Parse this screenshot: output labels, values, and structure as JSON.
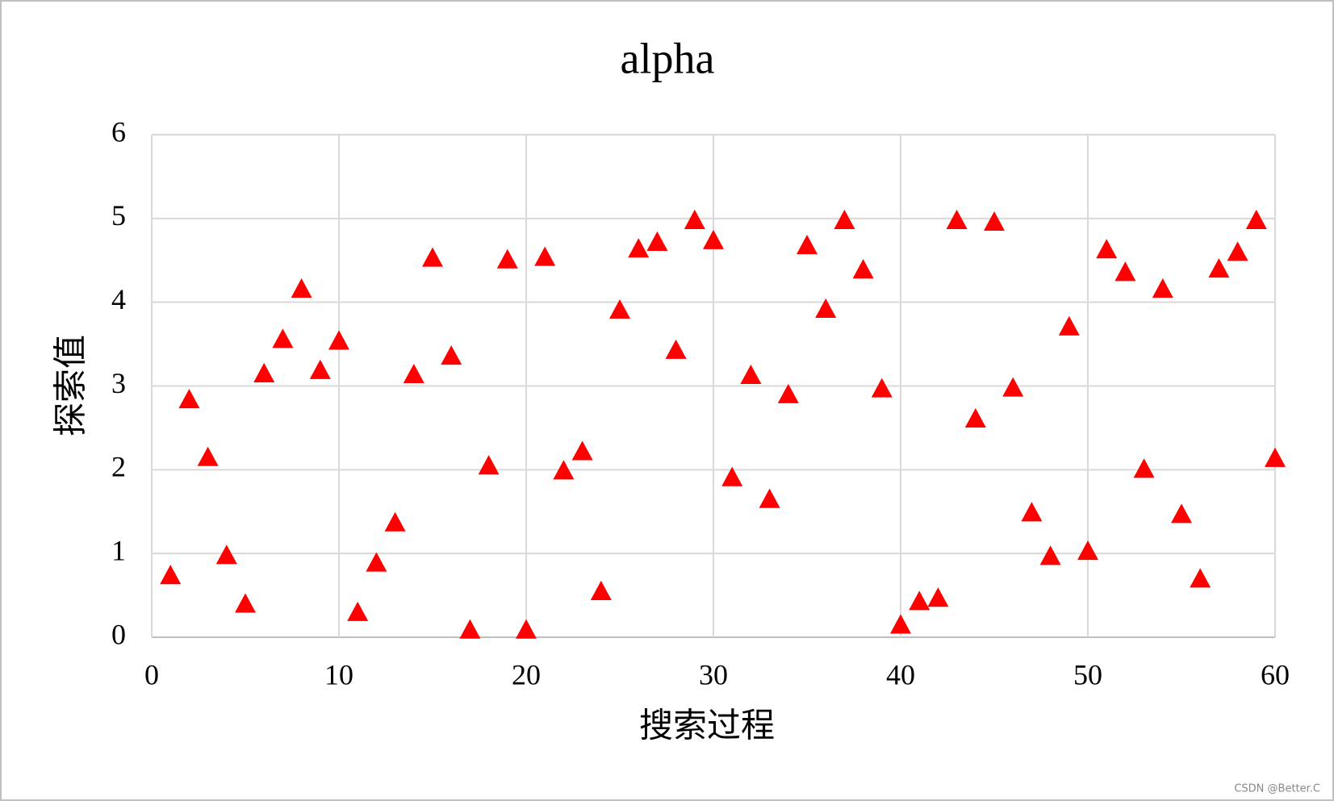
{
  "chart_data": {
    "type": "scatter",
    "title": "alpha",
    "x_label": "搜索过程",
    "y_label": "探索值",
    "x": [
      1,
      2,
      3,
      4,
      5,
      6,
      7,
      8,
      9,
      10,
      11,
      12,
      13,
      14,
      15,
      16,
      17,
      18,
      19,
      20,
      21,
      22,
      23,
      24,
      25,
      26,
      27,
      28,
      29,
      30,
      31,
      32,
      33,
      34,
      35,
      36,
      37,
      38,
      39,
      40,
      41,
      42,
      43,
      44,
      45,
      46,
      47,
      48,
      49,
      50,
      51,
      52,
      53,
      54,
      55,
      56,
      57,
      58,
      59,
      60
    ],
    "values": [
      0.74,
      2.84,
      2.15,
      0.98,
      0.4,
      3.15,
      3.56,
      4.16,
      3.19,
      3.54,
      0.3,
      0.89,
      1.37,
      3.14,
      4.53,
      3.36,
      0.09,
      2.05,
      4.51,
      0.09,
      4.54,
      1.99,
      2.22,
      0.55,
      3.91,
      4.64,
      4.72,
      3.43,
      4.98,
      4.74,
      1.91,
      3.13,
      1.65,
      2.9,
      4.68,
      3.92,
      4.98,
      4.39,
      2.97,
      0.15,
      0.43,
      0.47,
      4.98,
      2.61,
      4.96,
      2.98,
      1.49,
      0.97,
      3.71,
      1.03,
      4.63,
      4.36,
      2.01,
      4.16,
      1.47,
      0.7,
      4.4,
      4.6,
      4.98,
      2.14
    ],
    "color": "#ff0000",
    "marker": "triangle",
    "xlim": [
      0,
      60
    ],
    "xticks": [
      0,
      10,
      20,
      30,
      40,
      50,
      60
    ],
    "ylim": [
      0,
      6
    ],
    "yticks": [
      0,
      1,
      2,
      3,
      4,
      5,
      6
    ],
    "grid": true
  },
  "watermark": "CSDN @Better.C"
}
